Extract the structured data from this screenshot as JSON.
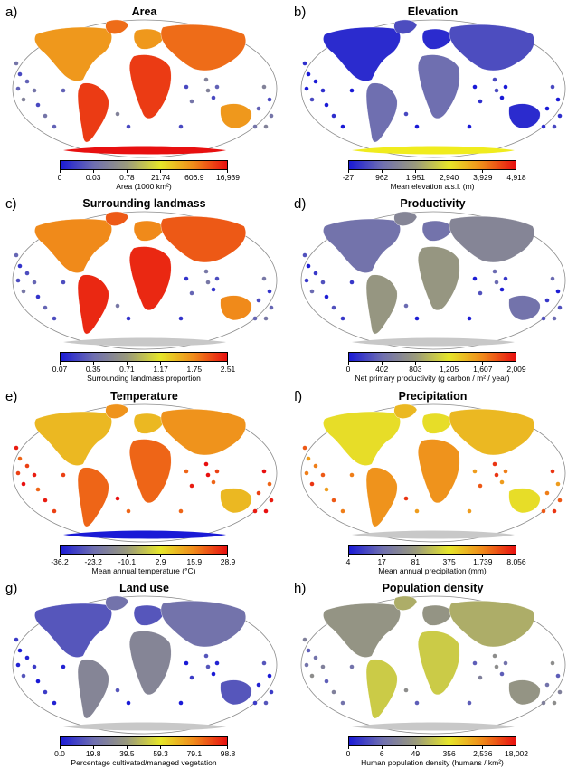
{
  "panels": [
    {
      "letter": "a)",
      "title": "Area",
      "legend_caption": "Area (1000 km²)",
      "ticks": [
        "0",
        "0.03",
        "0.78",
        "21.74",
        "606.9",
        "16,939"
      ],
      "colors": [
        "#1a1ad6",
        "#6f6fb0",
        "#9a9a7c",
        "#e6e62a",
        "#f08a1a",
        "#e81010"
      ],
      "land_level": 0.85,
      "island_level": 0.2,
      "antarctica_color": "#e81010"
    },
    {
      "letter": "b)",
      "title": "Elevation",
      "legend_caption": "Mean elevation a.s.l. (m)",
      "ticks": [
        "-27",
        "962",
        "1,951",
        "2,940",
        "3,929",
        "4,918"
      ],
      "colors": [
        "#1a1ad6",
        "#6f6fb0",
        "#9a9a7c",
        "#e6e62a",
        "#f08a1a",
        "#e81010"
      ],
      "land_level": 0.12,
      "island_level": 0.02,
      "antarctica_color": "#f0ec1e"
    },
    {
      "letter": "c)",
      "title": "Surrounding landmass",
      "legend_caption": "Surrounding landmass proportion",
      "ticks": [
        "0.07",
        "0.35",
        "0.71",
        "1.17",
        "1.75",
        "2.51"
      ],
      "colors": [
        "#1a1ad6",
        "#6f6fb0",
        "#9a9a7c",
        "#e6e62a",
        "#f08a1a",
        "#e81010"
      ],
      "land_level": 0.88,
      "island_level": 0.15,
      "antarctica_color": "#c8c8c8"
    },
    {
      "letter": "d)",
      "title": "Productivity",
      "legend_caption": "Net primary productivity (g carbon / m² / year)",
      "ticks": [
        "0",
        "402",
        "803",
        "1,205",
        "1,607",
        "2,009"
      ],
      "colors": [
        "#1a1ad6",
        "#6f6fb0",
        "#9a9a7c",
        "#e6e62a",
        "#f08a1a",
        "#e81010"
      ],
      "land_level": 0.3,
      "island_level": 0.1,
      "antarctica_color": "#c8c8c8"
    },
    {
      "letter": "e)",
      "title": "Temperature",
      "legend_caption": "Mean annual temperature (°C)",
      "ticks": [
        "-36.2",
        "-23.2",
        "-10.1",
        "2.9",
        "15.9",
        "28.9"
      ],
      "colors": [
        "#1a1ad6",
        "#6f6fb0",
        "#9a9a7c",
        "#e6e62a",
        "#f08a1a",
        "#e81010"
      ],
      "land_level": 0.78,
      "island_level": 0.95,
      "antarctica_color": "#1a1ad6"
    },
    {
      "letter": "f)",
      "title": "Precipitation",
      "legend_caption": "Mean annual precipitation (mm)",
      "ticks": [
        "4",
        "17",
        "81",
        "375",
        "1,739",
        "8,056"
      ],
      "colors": [
        "#1a1ad6",
        "#6f6fb0",
        "#9a9a7c",
        "#e6e62a",
        "#f08a1a",
        "#e81010"
      ],
      "land_level": 0.7,
      "island_level": 0.85,
      "antarctica_color": "#c8c8c8"
    },
    {
      "letter": "g)",
      "title": "Land use",
      "legend_caption": "Percentage cultivated/managed vegetation",
      "ticks": [
        "0.0",
        "19.8",
        "39.5",
        "59.3",
        "79.1",
        "98.8"
      ],
      "colors": [
        "#1a1ad6",
        "#6f6fb0",
        "#9a9a7c",
        "#e6e62a",
        "#f08a1a",
        "#e81010"
      ],
      "land_level": 0.22,
      "island_level": 0.05,
      "antarctica_color": "#c8c8c8"
    },
    {
      "letter": "h)",
      "title": "Population density",
      "legend_caption": "Human population density (humans / km²)",
      "ticks": [
        "0",
        "6",
        "49",
        "356",
        "2,536",
        "18,002"
      ],
      "colors": [
        "#1a1ad6",
        "#6f6fb0",
        "#9a9a7c",
        "#e6e62a",
        "#f08a1a",
        "#e81010"
      ],
      "land_level": 0.45,
      "island_level": 0.25,
      "antarctica_color": "#c8c8c8"
    }
  ]
}
